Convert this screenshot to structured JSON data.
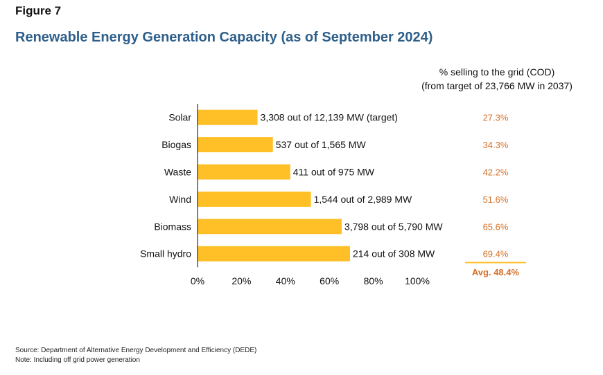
{
  "figure_label": "Figure 7",
  "title": "Renewable Energy Generation Capacity (as of September 2024)",
  "side_header": {
    "line1": "% selling to the grid (COD)",
    "line2": "(from target of 23,766 MW in 2037)"
  },
  "colors": {
    "bar": "#FFBF27",
    "accent": "#D4712A",
    "title": "#2E5F8A",
    "axis": "#000000"
  },
  "chart_data": {
    "type": "bar",
    "orientation": "horizontal",
    "categories": [
      "Solar",
      "Biogas",
      "Waste",
      "Wind",
      "Biomass",
      "Small hydro"
    ],
    "values": [
      27.3,
      34.3,
      42.2,
      51.6,
      65.6,
      69.4
    ],
    "value_unit": "%",
    "bar_labels": [
      "3,308 out of 12,139 MW (target)",
      "537 out of 1,565 MW",
      "411 out of 975 MW",
      "1,544 out of 2,989 MW",
      "3,798 out of 5,790 MW",
      "214 out of 308 MW"
    ],
    "pct_labels": [
      "27.3%",
      "34.3%",
      "42.2%",
      "51.6%",
      "65.6%",
      "69.4%"
    ],
    "average_label": "Avg. 48.4%",
    "xlim": [
      0,
      100
    ],
    "xticks": [
      0,
      20,
      40,
      60,
      80,
      100
    ],
    "xtick_labels": [
      "0%",
      "20%",
      "40%",
      "60%",
      "80%",
      "100%"
    ],
    "grid": false,
    "legend": "none"
  },
  "footer": {
    "source": "Source: Department of Alternative Energy Development and Efficiency (DEDE)",
    "note": "Note: Including off grid power generation"
  }
}
